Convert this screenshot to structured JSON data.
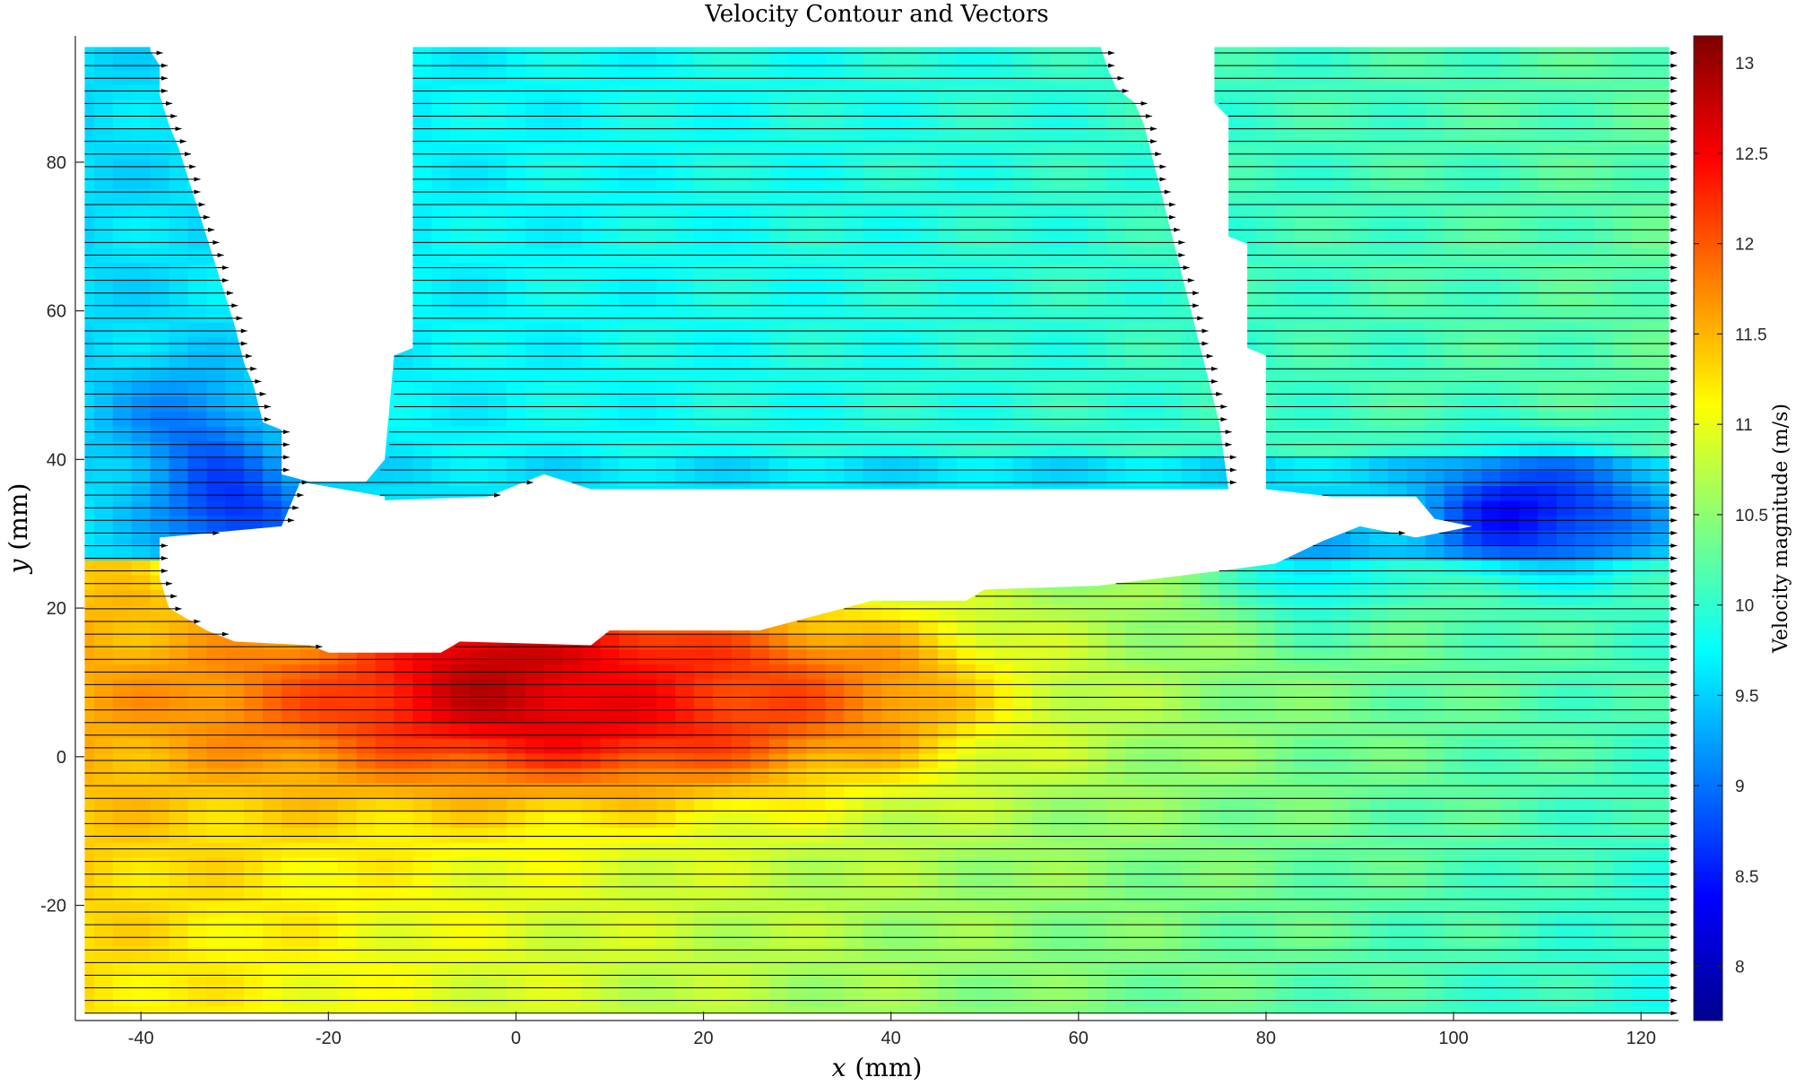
{
  "chart_data": {
    "type": "heatmap",
    "title": "Velocity Contour and Vectors",
    "xlabel_var": "x",
    "xlabel_unit": "(mm)",
    "ylabel_var": "y",
    "ylabel_unit": "(mm)",
    "xlim": [
      -47,
      124
    ],
    "ylim": [
      -35.5,
      97
    ],
    "xticks": [
      -40,
      -20,
      0,
      20,
      40,
      60,
      80,
      100,
      120
    ],
    "yticks": [
      -20,
      0,
      20,
      40,
      60,
      80
    ],
    "colorbar": {
      "label": "Velocity magnitude (m/s)",
      "range": [
        7.7,
        13.15
      ],
      "ticks": [
        8,
        8.5,
        9,
        9.5,
        10,
        10.5,
        11,
        11.5,
        12,
        12.5,
        13
      ],
      "colormap": "jet"
    },
    "vectors": {
      "direction": "+x",
      "color": "#000000",
      "x_range": [
        -46,
        123
      ],
      "y_range": [
        -34.5,
        95
      ],
      "y_spacing": 1.7
    },
    "blocked_regions": [
      {
        "name": "lower-solid-boundary",
        "polygon": [
          [
            -38,
            29.5
          ],
          [
            -25,
            31
          ],
          [
            -23,
            37
          ],
          [
            -14,
            35
          ],
          [
            -14,
            34.5
          ],
          [
            -3,
            35
          ],
          [
            3,
            38
          ],
          [
            8,
            36
          ],
          [
            77,
            36
          ],
          [
            80,
            36
          ],
          [
            87,
            35
          ],
          [
            96,
            35
          ],
          [
            98,
            32
          ],
          [
            102,
            31
          ],
          [
            96,
            29.5
          ],
          [
            90,
            31
          ],
          [
            86,
            29
          ],
          [
            81,
            26
          ],
          [
            75,
            25
          ],
          [
            62,
            23
          ],
          [
            50,
            22.5
          ],
          [
            48,
            21
          ],
          [
            38,
            21
          ],
          [
            32,
            19
          ],
          [
            26,
            17
          ],
          [
            10,
            17
          ],
          [
            8,
            15
          ],
          [
            -6,
            15.5
          ],
          [
            -8,
            14
          ],
          [
            -20,
            14
          ],
          [
            -22,
            15
          ],
          [
            -30,
            15.5
          ],
          [
            -33,
            17
          ],
          [
            -37,
            20
          ],
          [
            -38,
            24
          ]
        ]
      },
      {
        "name": "upper-left-gap",
        "polygon": [
          [
            -39,
            97
          ],
          [
            -11,
            97
          ],
          [
            -11,
            55
          ],
          [
            -13,
            54
          ],
          [
            -14,
            40
          ],
          [
            -16,
            37
          ],
          [
            -22,
            37
          ],
          [
            -25,
            38
          ],
          [
            -25,
            44
          ],
          [
            -27,
            45
          ],
          [
            -28,
            50
          ],
          [
            -29,
            53
          ],
          [
            -30,
            58
          ],
          [
            -31,
            62
          ],
          [
            -32,
            66
          ],
          [
            -33,
            70
          ],
          [
            -34,
            74
          ],
          [
            -35,
            78
          ],
          [
            -36,
            82
          ],
          [
            -37,
            85
          ],
          [
            -38,
            89
          ],
          [
            -38,
            93
          ],
          [
            -39,
            95
          ]
        ]
      },
      {
        "name": "upper-right-gap",
        "polygon": [
          [
            62,
            97
          ],
          [
            74.5,
            97
          ],
          [
            74.5,
            88
          ],
          [
            76,
            86
          ],
          [
            76,
            70
          ],
          [
            78,
            69
          ],
          [
            78,
            55
          ],
          [
            80,
            54
          ],
          [
            80,
            36
          ],
          [
            76,
            36
          ],
          [
            75,
            45
          ],
          [
            74,
            50
          ],
          [
            73,
            55
          ],
          [
            72,
            60
          ],
          [
            71,
            65
          ],
          [
            70,
            70
          ],
          [
            69,
            75
          ],
          [
            68,
            80
          ],
          [
            67,
            85
          ],
          [
            66,
            88
          ],
          [
            64,
            90
          ],
          [
            63,
            93
          ]
        ]
      },
      {
        "name": "right-edge-margin",
        "polygon": [
          [
            123,
            97
          ],
          [
            124,
            97
          ],
          [
            124,
            -35.5
          ],
          [
            123,
            -35.5
          ]
        ]
      }
    ],
    "velocity_peaks": [
      {
        "x": -4,
        "y": 14,
        "value": 13.0
      },
      {
        "x": 6,
        "y": 11,
        "value": 12.6
      },
      {
        "x": 15,
        "y": 10,
        "value": 12.3
      },
      {
        "x": 25,
        "y": 8,
        "value": 12.0
      },
      {
        "x": 40,
        "y": 9,
        "value": 11.8
      },
      {
        "x": -30,
        "y": 33,
        "value": 8.0
      },
      {
        "x": -35,
        "y": 45,
        "value": 8.7
      },
      {
        "x": 105,
        "y": 33,
        "value": 7.9
      },
      {
        "x": 115,
        "y": 33,
        "value": 8.5
      },
      {
        "x": 85,
        "y": 26,
        "value": 9.0
      }
    ]
  }
}
